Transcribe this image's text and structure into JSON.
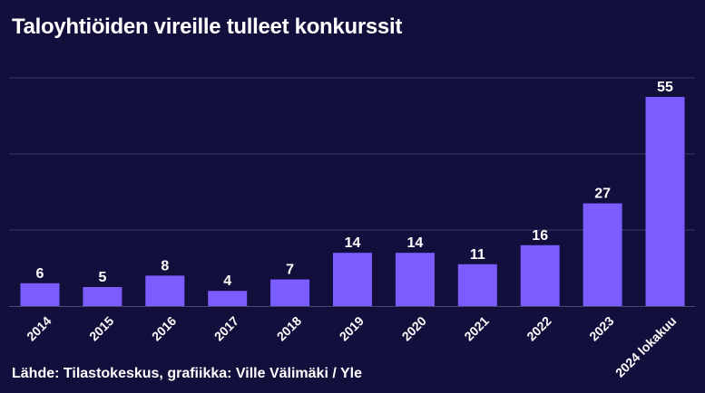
{
  "chart_data": {
    "type": "bar",
    "title": "Taloyhtiöiden vireille tulleet konkurssit",
    "categories": [
      "2014",
      "2015",
      "2016",
      "2017",
      "2018",
      "2019",
      "2020",
      "2021",
      "2022",
      "2023",
      "2024 lokakuu"
    ],
    "values": [
      6,
      5,
      8,
      4,
      7,
      14,
      14,
      11,
      16,
      27,
      55
    ],
    "data_labels": [
      "6",
      "5",
      "8",
      "4",
      "7",
      "14",
      "14",
      "11",
      "16",
      "27",
      "55"
    ],
    "xlabel": "",
    "ylabel": "",
    "ylim": [
      0,
      60
    ],
    "grid": true,
    "gridline_values": [
      20,
      40,
      60
    ],
    "y_tick_labels_shown": false,
    "bar_color": "#7b5cff",
    "background_color": "#130f3c",
    "source": "Lähde: Tilastokeskus, grafiikka: Ville Välimäki / Yle"
  }
}
